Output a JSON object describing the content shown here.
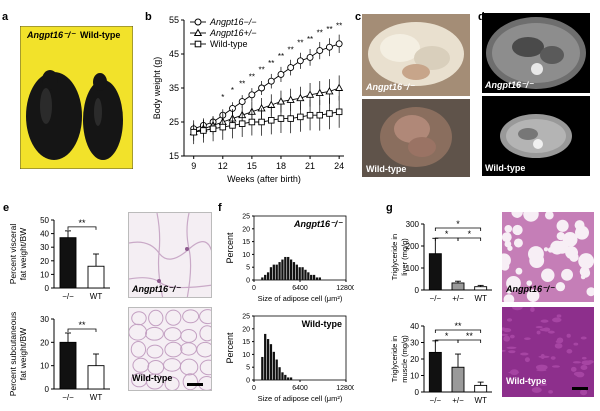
{
  "panels": {
    "a": {
      "letter": "a",
      "labels": {
        "left": "Angpt16⁻/⁻",
        "right": "Wild-type"
      },
      "colors": {
        "background": "#f2e22a",
        "mouse": "#151515"
      }
    },
    "b": {
      "letter": "b"
    },
    "c": {
      "letter": "c",
      "labels": {
        "top": "Angpt16⁻/⁻",
        "bottom": "Wild-type"
      }
    },
    "d": {
      "letter": "d",
      "labels": {
        "top": "Angpt16⁻/⁻",
        "bottom": "Wild-type"
      }
    },
    "e": {
      "letter": "e",
      "histo_labels": {
        "top": "Angpt16⁻/⁻",
        "bottom": "Wild-type"
      }
    },
    "f": {
      "letter": "f"
    },
    "g": {
      "letter": "g",
      "histo_labels": {
        "top": "Angpt16⁻/⁻",
        "bottom": "Wild-type"
      }
    }
  },
  "chart_data": [
    {
      "id": "b",
      "type": "line",
      "xlabel": "Weeks (after birth)",
      "ylabel": "Body weight (g)",
      "xlim": [
        8,
        24.5
      ],
      "ylim": [
        15,
        55
      ],
      "xticks": [
        9,
        12,
        15,
        18,
        21,
        24
      ],
      "yticks": [
        15,
        25,
        35,
        45,
        55
      ],
      "legend": [
        "Angpt16−/−",
        "Angpt16+/−",
        "Wild-type"
      ],
      "x": [
        9,
        10,
        11,
        12,
        13,
        14,
        15,
        16,
        17,
        18,
        19,
        20,
        21,
        22,
        23,
        24
      ],
      "series": [
        {
          "name": "Angpt16−/−",
          "marker": "circle",
          "values": [
            23,
            24,
            25,
            27,
            29,
            31,
            33,
            35,
            37,
            39,
            41,
            43,
            44,
            46,
            47,
            48
          ]
        },
        {
          "name": "Angpt16+/−",
          "marker": "triangle",
          "values": [
            22,
            23,
            24,
            25,
            26,
            27,
            28,
            29,
            30,
            31,
            31.5,
            32,
            33,
            33.5,
            34,
            35
          ]
        },
        {
          "name": "Wild-type",
          "marker": "square",
          "values": [
            22,
            22.5,
            23,
            23.5,
            24,
            24.5,
            25,
            25,
            25.5,
            26,
            26,
            26.5,
            27,
            27,
            27.5,
            28
          ]
        }
      ],
      "significance": [
        "*",
        "*",
        "**",
        "**",
        "**",
        "**",
        "**",
        "**",
        "**",
        "**",
        "**",
        "**",
        "**"
      ]
    },
    {
      "id": "e-top",
      "type": "bar",
      "ylabel": "Percent visceral fat weight/BW",
      "categories": [
        "−/−",
        "WT"
      ],
      "values": [
        37,
        16
      ],
      "errors": [
        5,
        9
      ],
      "colors": [
        "#111111",
        "#ffffff"
      ],
      "ylim": [
        0,
        50
      ],
      "yticks": [
        0,
        10,
        20,
        30,
        40,
        50
      ],
      "significance": "**"
    },
    {
      "id": "e-bottom",
      "type": "bar",
      "ylabel": "Percent subcutaneous fat weight/BW",
      "categories": [
        "−/−",
        "WT"
      ],
      "values": [
        20,
        10
      ],
      "errors": [
        4,
        5
      ],
      "colors": [
        "#111111",
        "#ffffff"
      ],
      "ylim": [
        0,
        30
      ],
      "yticks": [
        0,
        10,
        20,
        30
      ],
      "significance": "**"
    },
    {
      "id": "f-top",
      "type": "bar",
      "title": "Angpt16⁻/⁻",
      "xlabel": "Size of adipose cell (μm²)",
      "ylabel": "Percent",
      "xlim": [
        0,
        12800
      ],
      "xticks": [
        0,
        6400,
        12800
      ],
      "ylim": [
        0,
        25
      ],
      "yticks": [
        0,
        5,
        10,
        15,
        20,
        25
      ],
      "values": [
        1,
        2,
        3,
        5,
        6,
        6,
        7,
        8,
        9,
        9,
        8,
        7,
        6,
        5,
        5,
        4,
        3,
        2,
        2,
        1,
        1
      ]
    },
    {
      "id": "f-bottom",
      "type": "bar",
      "title": "Wild-type",
      "xlabel": "Size of adipose cell (μm²)",
      "ylabel": "Percent",
      "xlim": [
        0,
        12800
      ],
      "xticks": [
        0,
        6400,
        12800
      ],
      "ylim": [
        0,
        25
      ],
      "yticks": [
        0,
        5,
        10,
        15,
        20,
        25
      ],
      "values": [
        9,
        18,
        16,
        14,
        11,
        8,
        5,
        3,
        2,
        1,
        1
      ]
    },
    {
      "id": "g-top",
      "type": "bar",
      "ylabel": "Triglyceride in liver (mg/g)",
      "categories": [
        "−/−",
        "+/−",
        "WT"
      ],
      "values": [
        165,
        32,
        15
      ],
      "errors": [
        70,
        8,
        6
      ],
      "colors": [
        "#111111",
        "#9a9a9a",
        "#ffffff"
      ],
      "ylim": [
        0,
        300
      ],
      "yticks": [
        0,
        100,
        200,
        300
      ],
      "significance": [
        "*",
        "*",
        "*"
      ]
    },
    {
      "id": "g-bottom",
      "type": "bar",
      "ylabel": "Triglyceride in muscle (mg/g)",
      "categories": [
        "−/−",
        "+/−",
        "WT"
      ],
      "values": [
        24,
        15,
        4
      ],
      "errors": [
        7,
        8,
        2
      ],
      "colors": [
        "#111111",
        "#9a9a9a",
        "#ffffff"
      ],
      "ylim": [
        0,
        40
      ],
      "yticks": [
        0,
        10,
        20,
        30,
        40
      ],
      "significance": [
        "**",
        "*",
        "**"
      ]
    }
  ]
}
